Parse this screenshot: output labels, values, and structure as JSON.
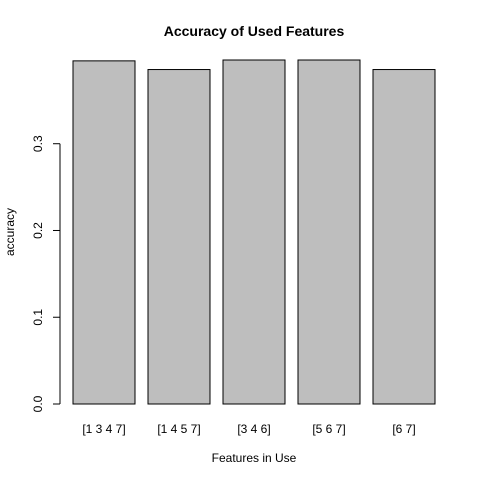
{
  "chart_data": {
    "type": "bar",
    "title": "Accuracy of Used Features",
    "xlabel": "Features in Use",
    "ylabel": "accuracy",
    "categories": [
      "[1 3 4 7]",
      "[1 4 5 7]",
      "[3 4 6]",
      "[5 6 7]",
      "[6 7]"
    ],
    "values": [
      0.3955,
      0.3855,
      0.3965,
      0.3965,
      0.3855
    ],
    "yticks": [
      "0.0",
      "0.1",
      "0.2",
      "0.3"
    ],
    "ylim": [
      0,
      0.3965
    ],
    "grid": false,
    "legend": "none",
    "colors": {
      "bar_fill": "#bebebe",
      "bar_stroke": "#000000",
      "axis": "#000000"
    }
  }
}
